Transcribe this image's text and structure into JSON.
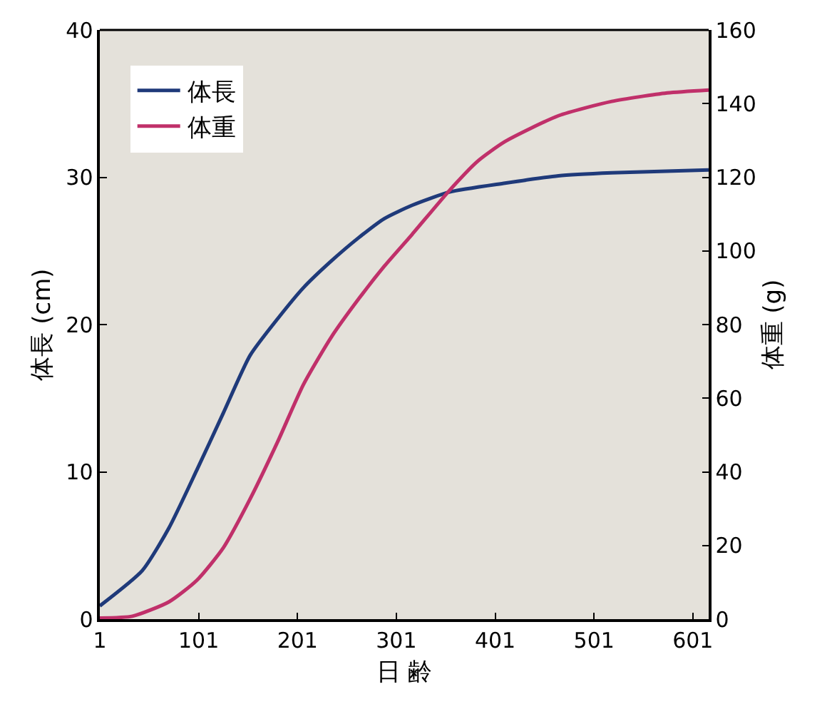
{
  "chart_data": {
    "type": "line",
    "xlabel": "日 齢",
    "ylabel": "体長 (cm)",
    "y2label": "体重 (g)",
    "xlim": [
      1,
      617
    ],
    "xticks": [
      1,
      101,
      201,
      301,
      401,
      501,
      601
    ],
    "ylim": [
      0,
      40
    ],
    "yticks": [
      0,
      10,
      20,
      30,
      40
    ],
    "y2lim": [
      0,
      160
    ],
    "y2ticks": [
      0,
      20,
      40,
      60,
      80,
      100,
      120,
      140,
      160
    ],
    "grid": false,
    "legend": "top left",
    "marker": "none",
    "line_style": "solid",
    "series": [
      {
        "name": "体長",
        "color": "#1f3a7a",
        "x": [
          1,
          44,
          71,
          99,
          126,
          153,
          181,
          207,
          235,
          263,
          289,
          317,
          355,
          411,
          465,
          519,
          617
        ],
        "values": [
          0.9,
          3.3,
          6.2,
          10.1,
          14.0,
          17.9,
          20.4,
          22.5,
          24.3,
          25.9,
          27.2,
          28.1,
          29.0,
          29.6,
          30.1,
          30.3,
          30.5
        ]
      },
      {
        "name": "体重",
        "color": "#c0306a",
        "axis": "y2",
        "x": [
          1,
          34,
          71,
          99,
          126,
          153,
          181,
          207,
          235,
          263,
          289,
          317,
          355,
          383,
          411,
          465,
          519,
          575,
          617
        ],
        "values": [
          0.3,
          0.8,
          4.7,
          10.5,
          19.4,
          32.6,
          48.2,
          63.7,
          76.5,
          87.0,
          95.9,
          104.5,
          116.5,
          124.3,
          129.7,
          136.7,
          140.6,
          142.9,
          143.7
        ]
      }
    ]
  }
}
